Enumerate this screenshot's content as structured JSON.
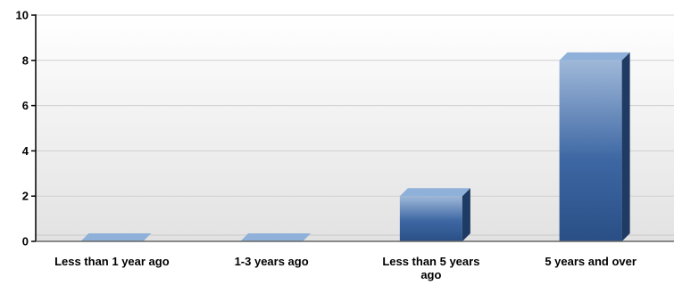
{
  "chart_data": {
    "type": "bar",
    "categories": [
      [
        "Less than 1 year ago"
      ],
      [
        "1-3 years ago"
      ],
      [
        "Less than 5 years",
        "ago"
      ],
      [
        "5 years and over"
      ]
    ],
    "values": [
      0,
      0,
      2,
      8
    ],
    "ylim": [
      0,
      10
    ],
    "yticks": [
      0,
      2,
      4,
      6,
      8,
      10
    ],
    "grid": true,
    "colors": {
      "bar_light": "#9fb8d9",
      "bar_dark": "#2f578f",
      "bar_side": "#1f3a63",
      "bar_top": "#8fb0d8",
      "plot_bg_top": "#ffffff",
      "plot_bg_bottom": "#e4e4e4",
      "gridline": "#cfcfcf",
      "axis": "#000000"
    }
  }
}
